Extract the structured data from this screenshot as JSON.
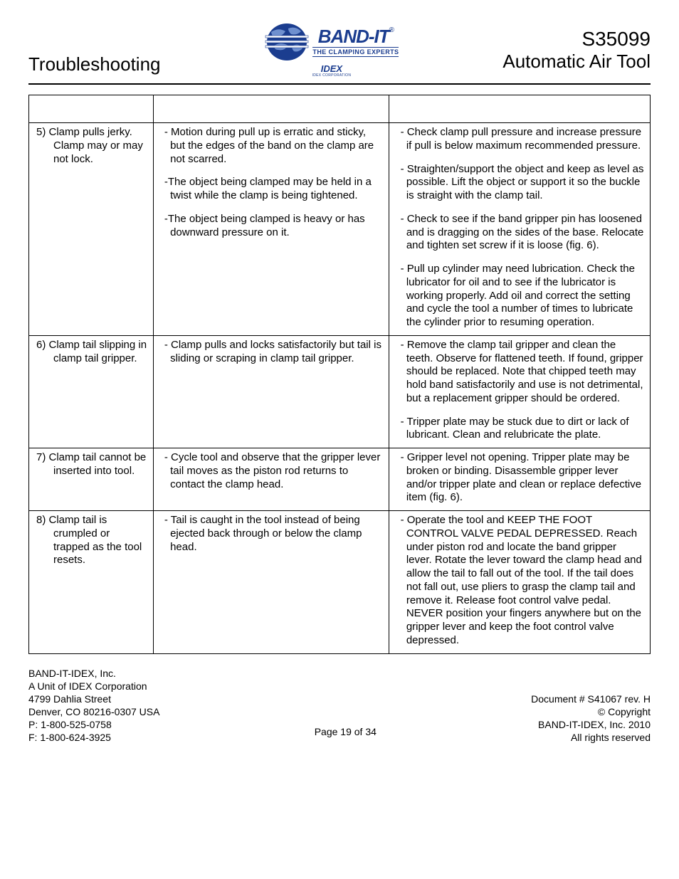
{
  "header": {
    "left": "Troubleshooting",
    "brand_name": "BAND-IT",
    "brand_reg": "®",
    "brand_sub": "THE CLAMPING EXPERTS",
    "idex_main": "IDEX",
    "idex_sub": "IDEX CORPORATION",
    "right_code": "S35099",
    "right_title": "Automatic Air Tool"
  },
  "rows": [
    {
      "problem": "5) Clamp pulls jerky. Clamp may or may not lock.",
      "causes": [
        "- Motion during pull up is erratic and sticky, but the edges of the band on the clamp are not scarred.",
        "-The object being clamped may be held in a twist while the clamp is being tightened.",
        "-The object being clamped is heavy or has downward pressure on it."
      ],
      "remedies": [
        "- Check clamp pull pressure and increase pressure if pull is below maximum recommended pressure.",
        "- Straighten/support the object and keep as level as possible. Lift the object or support it so the buckle is straight with the clamp tail.",
        "- Check to see if the band gripper pin has loosened and is dragging on the sides of the base. Relocate and tighten set screw if it is loose (fig. 6).",
        "- Pull up cylinder may need lubrication. Check the lubricator for oil and to see if the lubricator is working properly.  Add oil and correct the setting and cycle the tool a number of times to lubricate the cylinder prior to resuming operation."
      ]
    },
    {
      "problem": "6) Clamp tail slipping in clamp tail gripper.",
      "causes": [
        "- Clamp pulls and locks satisfactorily but tail is sliding or scraping in clamp tail gripper."
      ],
      "remedies": [
        "- Remove the clamp tail gripper and clean the teeth. Observe for flattened teeth. If found, gripper should be replaced. Note that chipped teeth may hold band satisfactorily and use is not detrimental, but a replacement gripper should be ordered.",
        "- Tripper plate may be stuck due to dirt or lack of lubricant. Clean and relubricate the plate."
      ]
    },
    {
      "problem": "7) Clamp tail cannot be inserted into tool.",
      "causes": [
        "- Cycle tool and observe that the gripper lever tail moves as the piston rod returns to contact the clamp head."
      ],
      "remedies": [
        "- Gripper level not opening. Tripper plate may be broken or binding. Disassemble gripper lever and/or tripper plate and clean or replace defective item (fig. 6)."
      ]
    },
    {
      "problem": "8) Clamp tail is crumpled or trapped as the tool resets.",
      "causes": [
        "- Tail is caught in the tool instead of being ejected back through or below the clamp head."
      ],
      "remedies": [
        "- Operate the tool and KEEP THE FOOT CONTROL VALVE PEDAL DEPRESSED. Reach under piston rod and locate the band gripper lever. Rotate the lever toward the clamp head and allow the tail to fall out of the tool. If the tail does not fall out, use pliers to grasp the clamp tail and remove it. Release foot control valve pedal. NEVER position your fingers anywhere but on the gripper lever and keep the foot control valve depressed."
      ]
    }
  ],
  "footer": {
    "left": [
      "BAND-IT-IDEX, Inc.",
      "A Unit of IDEX Corporation",
      "4799 Dahlia Street",
      "Denver, CO 80216-0307 USA",
      "P: 1-800-525-0758",
      "F: 1-800-624-3925"
    ],
    "center": "Page 19 of 34",
    "right": [
      "Document # S41067 rev. H",
      "© Copyright",
      "BAND-IT-IDEX, Inc. 2010",
      "All rights reserved"
    ]
  },
  "colors": {
    "brand": "#1b3d8f",
    "text": "#000000",
    "background": "#ffffff"
  }
}
